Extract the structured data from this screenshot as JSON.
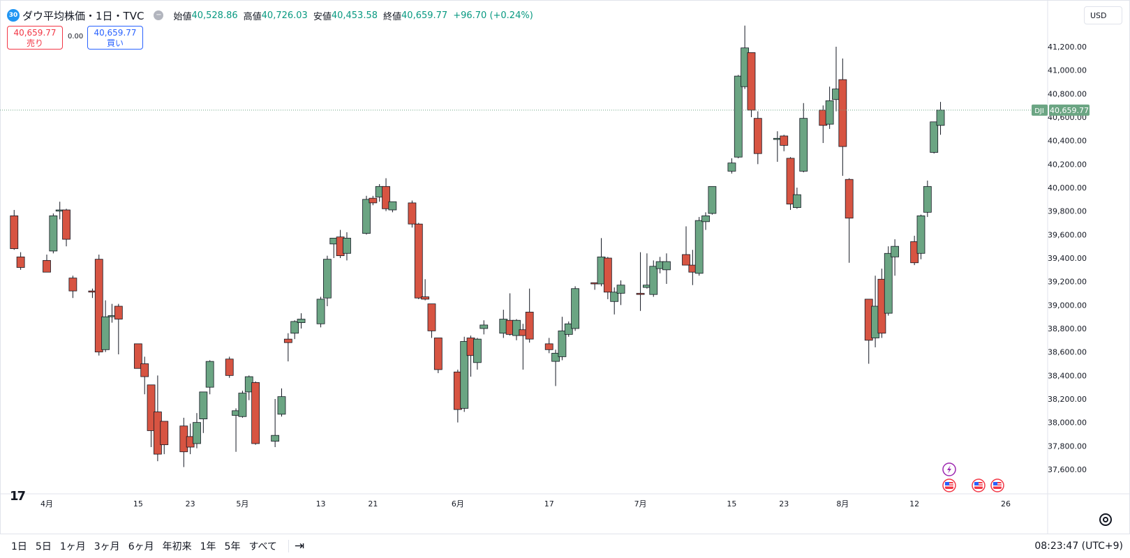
{
  "header": {
    "badge": "30",
    "title": "ダウ平均株価・1日・TVC",
    "open_label": "始値",
    "open_value": "40,528.86",
    "high_label": "高値",
    "high_value": "40,726.03",
    "low_label": "安値",
    "low_value": "40,453.58",
    "close_label": "終値",
    "close_value": "40,659.77",
    "change": "+96.70 (+0.24%)"
  },
  "trade": {
    "sell_price": "40,659.77",
    "sell_label": "売り",
    "spread": "0.00",
    "buy_price": "40,659.77",
    "buy_label": "買い"
  },
  "currency": "USD",
  "last_price_tag": {
    "symbol": "DJI",
    "price": "40,659.77"
  },
  "time_axis_labels": [
    {
      "text": "4月",
      "date": "2024-04-01"
    },
    {
      "text": "15",
      "date": "2024-04-15"
    },
    {
      "text": "23",
      "date": "2024-04-23"
    },
    {
      "text": "5月",
      "date": "2024-05-01"
    },
    {
      "text": "13",
      "date": "2024-05-13"
    },
    {
      "text": "21",
      "date": "2024-05-21"
    },
    {
      "text": "6月",
      "date": "2024-06-03"
    },
    {
      "text": "17",
      "date": "2024-06-17"
    },
    {
      "text": "7月",
      "date": "2024-07-01"
    },
    {
      "text": "15",
      "date": "2024-07-15"
    },
    {
      "text": "23",
      "date": "2024-07-23"
    },
    {
      "text": "8月",
      "date": "2024-08-01"
    },
    {
      "text": "12",
      "date": "2024-08-12"
    },
    {
      "text": "26",
      "date": "2024-08-26"
    }
  ],
  "bottom_bar": {
    "ranges": [
      "1日",
      "5日",
      "1ヶ月",
      "3ヶ月",
      "6ヶ月",
      "年初来",
      "1年",
      "5年",
      "すべて"
    ],
    "clock": "08:23:47 (UTC+9)"
  },
  "colors": {
    "up": "#6ba583",
    "down": "#d75442",
    "up_tag": "#6ba583"
  },
  "icons": [
    "tradingview-logo-icon",
    "goto-date-icon",
    "settings-gear-icon",
    "lightning-event-icon",
    "us-flag-event-icon"
  ],
  "chart_data": {
    "type": "candlestick",
    "y_axis_ticks": [
      "41,200.00",
      "41,000.00",
      "40,800.00",
      "40,600.00",
      "40,400.00",
      "40,200.00",
      "40,000.00",
      "39,800.00",
      "39,600.00",
      "39,400.00",
      "39,200.00",
      "39,000.00",
      "38,800.00",
      "38,600.00",
      "38,400.00",
      "38,200.00",
      "38,000.00",
      "37,800.00",
      "37,600.00"
    ],
    "y_range": [
      37500,
      41600
    ],
    "x_range": [
      "2024-03-27",
      "2024-08-30"
    ],
    "candles": [
      {
        "date": "2024-03-27",
        "o": 39760,
        "h": 39810,
        "l": 39470,
        "c": 39480
      },
      {
        "date": "2024-03-28",
        "o": 39410,
        "h": 39450,
        "l": 39300,
        "c": 39320
      },
      {
        "date": "2024-04-01",
        "o": 39380,
        "h": 39430,
        "l": 39280,
        "c": 39280
      },
      {
        "date": "2024-04-02",
        "o": 39460,
        "h": 39780,
        "l": 39440,
        "c": 39760
      },
      {
        "date": "2024-04-03",
        "o": 39800,
        "h": 39880,
        "l": 39730,
        "c": 39810
      },
      {
        "date": "2024-04-04",
        "o": 39810,
        "h": 39820,
        "l": 39500,
        "c": 39560
      },
      {
        "date": "2024-04-05",
        "o": 39230,
        "h": 39250,
        "l": 39060,
        "c": 39120
      },
      {
        "date": "2024-04-08",
        "o": 39120,
        "h": 39140,
        "l": 39060,
        "c": 39110
      },
      {
        "date": "2024-04-09",
        "o": 39390,
        "h": 39430,
        "l": 38570,
        "c": 38600
      },
      {
        "date": "2024-04-10",
        "o": 38620,
        "h": 39040,
        "l": 38600,
        "c": 38900
      },
      {
        "date": "2024-04-11",
        "o": 38900,
        "h": 39010,
        "l": 38850,
        "c": 38910
      },
      {
        "date": "2024-04-12",
        "o": 38990,
        "h": 39010,
        "l": 38580,
        "c": 38880
      },
      {
        "date": "2024-04-15",
        "o": 38670,
        "h": 38670,
        "l": 38460,
        "c": 38460
      },
      {
        "date": "2024-04-16",
        "o": 38500,
        "h": 38560,
        "l": 38240,
        "c": 38390
      },
      {
        "date": "2024-04-17",
        "o": 38320,
        "h": 38320,
        "l": 37790,
        "c": 37930
      },
      {
        "date": "2024-04-18",
        "o": 38090,
        "h": 38400,
        "l": 37670,
        "c": 37730
      },
      {
        "date": "2024-04-19",
        "o": 38010,
        "h": 38010,
        "l": 37730,
        "c": 37810
      },
      {
        "date": "2024-04-22",
        "o": 37970,
        "h": 38040,
        "l": 37620,
        "c": 37750
      },
      {
        "date": "2024-04-23",
        "o": 37880,
        "h": 37990,
        "l": 37730,
        "c": 37790
      },
      {
        "date": "2024-04-24",
        "o": 37820,
        "h": 38080,
        "l": 37780,
        "c": 38000
      },
      {
        "date": "2024-04-25",
        "o": 38030,
        "h": 38260,
        "l": 37910,
        "c": 38260
      },
      {
        "date": "2024-04-26",
        "o": 38300,
        "h": 38530,
        "l": 38240,
        "c": 38520
      },
      {
        "date": "2024-04-29",
        "o": 38540,
        "h": 38560,
        "l": 38380,
        "c": 38400
      },
      {
        "date": "2024-04-30",
        "o": 38060,
        "h": 38120,
        "l": 37750,
        "c": 38100
      },
      {
        "date": "2024-05-01",
        "o": 38050,
        "h": 38270,
        "l": 38040,
        "c": 38250
      },
      {
        "date": "2024-05-02",
        "o": 38260,
        "h": 38400,
        "l": 38190,
        "c": 38390
      },
      {
        "date": "2024-05-03",
        "o": 38340,
        "h": 38350,
        "l": 37810,
        "c": 37820
      },
      {
        "date": "2024-05-06",
        "o": 37840,
        "h": 38200,
        "l": 37790,
        "c": 37890
      },
      {
        "date": "2024-05-07",
        "o": 38070,
        "h": 38290,
        "l": 38050,
        "c": 38220
      },
      {
        "date": "2024-05-08",
        "o": 38710,
        "h": 38760,
        "l": 38520,
        "c": 38680
      },
      {
        "date": "2024-05-09",
        "o": 38760,
        "h": 38870,
        "l": 38710,
        "c": 38860
      },
      {
        "date": "2024-05-10",
        "o": 38850,
        "h": 38930,
        "l": 38800,
        "c": 38880
      },
      {
        "date": "2024-05-13",
        "o": 38840,
        "h": 39070,
        "l": 38810,
        "c": 39050
      },
      {
        "date": "2024-05-14",
        "o": 39060,
        "h": 39420,
        "l": 38990,
        "c": 39390
      },
      {
        "date": "2024-05-15",
        "o": 39520,
        "h": 39560,
        "l": 39400,
        "c": 39570
      },
      {
        "date": "2024-05-16",
        "o": 39580,
        "h": 39640,
        "l": 39400,
        "c": 39420
      },
      {
        "date": "2024-05-17",
        "o": 39440,
        "h": 39620,
        "l": 39380,
        "c": 39570
      },
      {
        "date": "2024-05-20",
        "o": 39610,
        "h": 39930,
        "l": 39600,
        "c": 39900
      },
      {
        "date": "2024-05-21",
        "o": 39910,
        "h": 39930,
        "l": 39850,
        "c": 39870
      },
      {
        "date": "2024-05-22",
        "o": 39920,
        "h": 40030,
        "l": 39880,
        "c": 40010
      },
      {
        "date": "2024-05-23",
        "o": 40010,
        "h": 40080,
        "l": 39800,
        "c": 39820
      },
      {
        "date": "2024-05-24",
        "o": 39810,
        "h": 39880,
        "l": 39790,
        "c": 39880
      },
      {
        "date": "2024-05-27",
        "o": 39870,
        "h": 39890,
        "l": 39660,
        "c": 39690
      },
      {
        "date": "2024-05-28",
        "o": 39690,
        "h": 39700,
        "l": 39050,
        "c": 39060
      },
      {
        "date": "2024-05-29",
        "o": 39070,
        "h": 39220,
        "l": 39040,
        "c": 39050
      },
      {
        "date": "2024-05-30",
        "o": 39010,
        "h": 39010,
        "l": 38720,
        "c": 38780
      },
      {
        "date": "2024-05-31",
        "o": 38720,
        "h": 38720,
        "l": 38420,
        "c": 38450
      },
      {
        "date": "2024-06-03",
        "o": 38430,
        "h": 38450,
        "l": 38000,
        "c": 38110
      },
      {
        "date": "2024-06-04",
        "o": 38120,
        "h": 38730,
        "l": 38090,
        "c": 38690
      },
      {
        "date": "2024-06-05",
        "o": 38720,
        "h": 38740,
        "l": 38390,
        "c": 38570
      },
      {
        "date": "2024-06-06",
        "o": 38510,
        "h": 38720,
        "l": 38450,
        "c": 38710
      },
      {
        "date": "2024-06-07",
        "o": 38800,
        "h": 38870,
        "l": 38750,
        "c": 38830
      },
      {
        "date": "2024-06-10",
        "o": 38760,
        "h": 38960,
        "l": 38720,
        "c": 38880
      },
      {
        "date": "2024-06-11",
        "o": 38870,
        "h": 39100,
        "l": 38740,
        "c": 38750
      },
      {
        "date": "2024-06-12",
        "o": 38740,
        "h": 38880,
        "l": 38700,
        "c": 38870
      },
      {
        "date": "2024-06-13",
        "o": 38790,
        "h": 38840,
        "l": 38450,
        "c": 38740
      },
      {
        "date": "2024-06-14",
        "o": 38940,
        "h": 39140,
        "l": 38680,
        "c": 38710
      },
      {
        "date": "2024-06-17",
        "o": 38670,
        "h": 38720,
        "l": 38590,
        "c": 38620
      },
      {
        "date": "2024-06-18",
        "o": 38520,
        "h": 38620,
        "l": 38310,
        "c": 38590
      },
      {
        "date": "2024-06-19",
        "o": 38560,
        "h": 38900,
        "l": 38530,
        "c": 38780
      },
      {
        "date": "2024-06-20",
        "o": 38750,
        "h": 38860,
        "l": 38730,
        "c": 38840
      },
      {
        "date": "2024-06-21",
        "o": 38800,
        "h": 39160,
        "l": 38780,
        "c": 39140
      },
      {
        "date": "2024-06-24",
        "o": 39190,
        "h": 39190,
        "l": 39130,
        "c": 39180
      },
      {
        "date": "2024-06-25",
        "o": 39180,
        "h": 39570,
        "l": 39160,
        "c": 39410
      },
      {
        "date": "2024-06-26",
        "o": 39400,
        "h": 39410,
        "l": 39050,
        "c": 39110
      },
      {
        "date": "2024-06-27",
        "o": 39030,
        "h": 39150,
        "l": 38920,
        "c": 39110
      },
      {
        "date": "2024-06-28",
        "o": 39100,
        "h": 39210,
        "l": 39000,
        "c": 39170
      },
      {
        "date": "2024-07-01",
        "o": 39100,
        "h": 39450,
        "l": 38950,
        "c": 39090
      },
      {
        "date": "2024-07-02",
        "o": 39150,
        "h": 39440,
        "l": 39140,
        "c": 39170
      },
      {
        "date": "2024-07-03",
        "o": 39090,
        "h": 39380,
        "l": 39070,
        "c": 39330
      },
      {
        "date": "2024-07-04",
        "o": 39310,
        "h": 39410,
        "l": 39270,
        "c": 39370
      },
      {
        "date": "2024-07-05",
        "o": 39300,
        "h": 39440,
        "l": 39180,
        "c": 39370
      },
      {
        "date": "2024-07-08",
        "o": 39430,
        "h": 39670,
        "l": 39340,
        "c": 39340
      },
      {
        "date": "2024-07-09",
        "o": 39340,
        "h": 39470,
        "l": 39170,
        "c": 39280
      },
      {
        "date": "2024-07-10",
        "o": 39270,
        "h": 39750,
        "l": 39250,
        "c": 39720
      },
      {
        "date": "2024-07-11",
        "o": 39710,
        "h": 39790,
        "l": 39640,
        "c": 39760
      },
      {
        "date": "2024-07-12",
        "o": 39780,
        "h": 40000,
        "l": 39770,
        "c": 40010
      },
      {
        "date": "2024-07-15",
        "o": 40140,
        "h": 40250,
        "l": 40120,
        "c": 40210
      },
      {
        "date": "2024-07-16",
        "o": 40260,
        "h": 40960,
        "l": 40250,
        "c": 40950
      },
      {
        "date": "2024-07-17",
        "o": 40860,
        "h": 41380,
        "l": 40840,
        "c": 41190
      },
      {
        "date": "2024-07-18",
        "o": 41150,
        "h": 41150,
        "l": 40600,
        "c": 40660
      },
      {
        "date": "2024-07-19",
        "o": 40590,
        "h": 40650,
        "l": 40200,
        "c": 40290
      },
      {
        "date": "2024-07-22",
        "o": 40410,
        "h": 40480,
        "l": 40220,
        "c": 40420
      },
      {
        "date": "2024-07-23",
        "o": 40440,
        "h": 40450,
        "l": 40310,
        "c": 40360
      },
      {
        "date": "2024-07-24",
        "o": 40250,
        "h": 40260,
        "l": 39810,
        "c": 39860
      },
      {
        "date": "2024-07-25",
        "o": 39830,
        "h": 40000,
        "l": 39820,
        "c": 39940
      },
      {
        "date": "2024-07-26",
        "o": 40140,
        "h": 40720,
        "l": 40130,
        "c": 40590
      },
      {
        "date": "2024-07-29",
        "o": 40660,
        "h": 40700,
        "l": 40380,
        "c": 40530
      },
      {
        "date": "2024-07-30",
        "o": 40540,
        "h": 40860,
        "l": 40500,
        "c": 40740
      },
      {
        "date": "2024-07-31",
        "o": 40750,
        "h": 41200,
        "l": 40650,
        "c": 40840
      },
      {
        "date": "2024-08-01",
        "o": 40920,
        "h": 41100,
        "l": 40100,
        "c": 40350
      },
      {
        "date": "2024-08-02",
        "o": 40070,
        "h": 40080,
        "l": 39360,
        "c": 39740
      },
      {
        "date": "2024-08-05",
        "o": 39050,
        "h": 39050,
        "l": 38500,
        "c": 38700
      },
      {
        "date": "2024-08-06",
        "o": 38720,
        "h": 39250,
        "l": 38640,
        "c": 38990
      },
      {
        "date": "2024-08-07",
        "o": 39220,
        "h": 39310,
        "l": 38720,
        "c": 38760
      },
      {
        "date": "2024-08-08",
        "o": 38930,
        "h": 39500,
        "l": 38910,
        "c": 39440
      },
      {
        "date": "2024-08-09",
        "o": 39410,
        "h": 39560,
        "l": 39250,
        "c": 39500
      },
      {
        "date": "2024-08-12",
        "o": 39540,
        "h": 39590,
        "l": 39340,
        "c": 39360
      },
      {
        "date": "2024-08-13",
        "o": 39440,
        "h": 39770,
        "l": 39390,
        "c": 39760
      },
      {
        "date": "2024-08-14",
        "o": 39790,
        "h": 40060,
        "l": 39750,
        "c": 40010
      },
      {
        "date": "2024-08-15",
        "o": 40300,
        "h": 40560,
        "l": 40290,
        "c": 40560
      },
      {
        "date": "2024-08-16",
        "o": 40530,
        "h": 40730,
        "l": 40450,
        "c": 40660
      }
    ]
  }
}
